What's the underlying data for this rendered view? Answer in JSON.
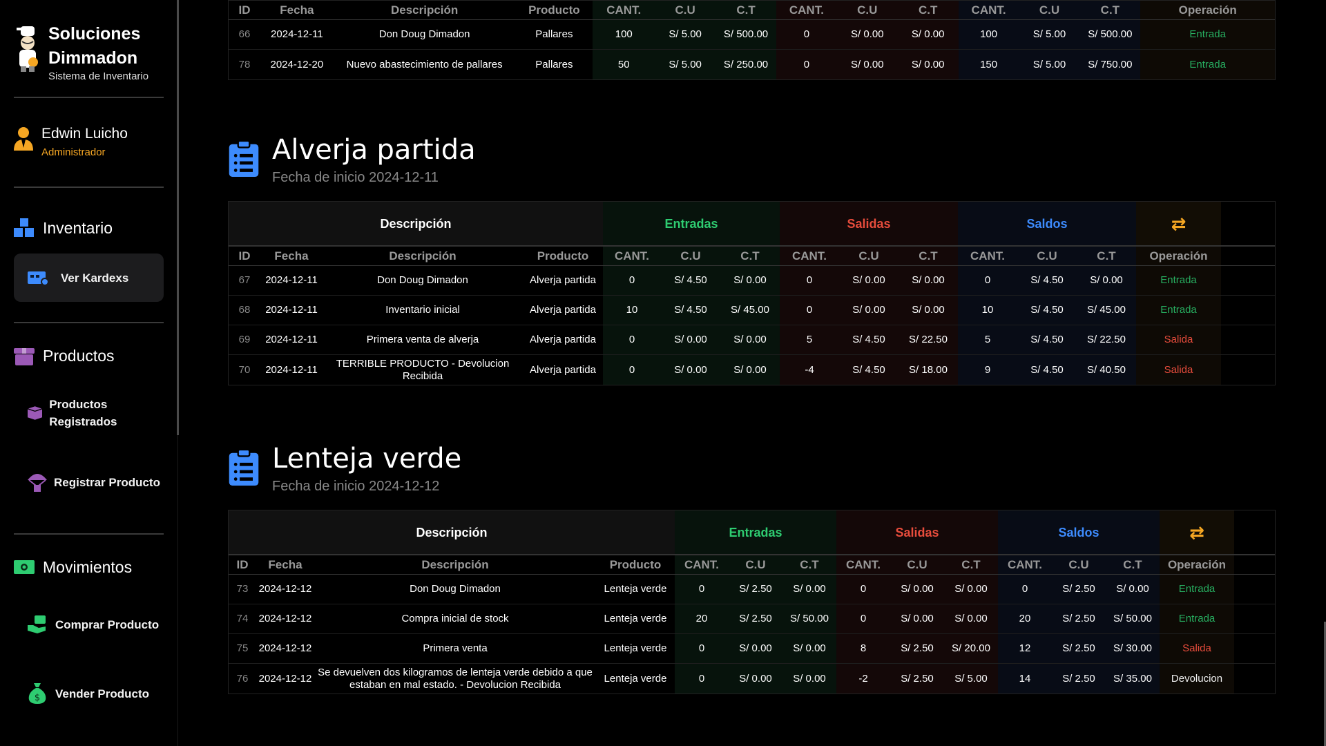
{
  "brand": {
    "title": "Soluciones Dimmadon",
    "subtitle": "Sistema de Inventario"
  },
  "user": {
    "name": "Edwin Luicho",
    "role": "Administrador"
  },
  "sidebar": {
    "inventario": {
      "label": "Inventario",
      "items": [
        {
          "label": "Ver Kardexs"
        }
      ]
    },
    "productos": {
      "label": "Productos",
      "items": [
        {
          "label": "Productos Registrados"
        },
        {
          "label": "Registrar Producto"
        }
      ]
    },
    "movimientos": {
      "label": "Movimientos",
      "items": [
        {
          "label": "Comprar Producto"
        },
        {
          "label": "Vender Producto"
        }
      ]
    }
  },
  "columns": [
    "ID",
    "Fecha",
    "Descripción",
    "Producto",
    "CANT.",
    "C.U",
    "C.T",
    "CANT.",
    "C.U",
    "C.T",
    "CANT.",
    "C.U",
    "C.T",
    "Operación"
  ],
  "groups": {
    "desc": "Descripción",
    "entradas": "Entradas",
    "salidas": "Salidas",
    "saldos": "Saldos",
    "op_icon": "⇄"
  },
  "colors": {
    "entrada": "#27ae60",
    "salida": "#e74c3c",
    "saldos": "#3d8bfd",
    "accent": "#f5a623"
  },
  "kardex": [
    {
      "rows": [
        [
          "66",
          "2024-12-11",
          "Don Doug Dimadon",
          "Pallares",
          "100",
          "S/ 5.00",
          "S/ 500.00",
          "0",
          "S/ 0.00",
          "S/ 0.00",
          "100",
          "S/ 5.00",
          "S/ 500.00",
          "Entrada"
        ],
        [
          "78",
          "2024-12-20",
          "Nuevo abastecimiento de pallares",
          "Pallares",
          "50",
          "S/ 5.00",
          "S/ 250.00",
          "0",
          "S/ 0.00",
          "S/ 0.00",
          "150",
          "S/ 5.00",
          "S/ 750.00",
          "Entrada"
        ]
      ]
    },
    {
      "name": "Alverja partida",
      "start": "Fecha de inicio 2024-12-11",
      "rows": [
        [
          "67",
          "2024-12-11",
          "Don Doug Dimadon",
          "Alverja partida",
          "0",
          "S/ 4.50",
          "S/ 0.00",
          "0",
          "S/ 0.00",
          "S/ 0.00",
          "0",
          "S/ 4.50",
          "S/ 0.00",
          "Entrada"
        ],
        [
          "68",
          "2024-12-11",
          "Inventario inicial",
          "Alverja partida",
          "10",
          "S/ 4.50",
          "S/ 45.00",
          "0",
          "S/ 0.00",
          "S/ 0.00",
          "10",
          "S/ 4.50",
          "S/ 45.00",
          "Entrada"
        ],
        [
          "69",
          "2024-12-11",
          "Primera venta de alverja",
          "Alverja partida",
          "0",
          "S/ 0.00",
          "S/ 0.00",
          "5",
          "S/ 4.50",
          "S/ 22.50",
          "5",
          "S/ 4.50",
          "S/ 22.50",
          "Salida"
        ],
        [
          "70",
          "2024-12-11",
          "TERRIBLE PRODUCTO - Devolucion Recibida",
          "Alverja partida",
          "0",
          "S/ 0.00",
          "S/ 0.00",
          "-4",
          "S/ 4.50",
          "S/ 18.00",
          "9",
          "S/ 4.50",
          "S/ 40.50",
          "Salida"
        ]
      ]
    },
    {
      "name": "Lenteja verde",
      "start": "Fecha de inicio 2024-12-12",
      "rows": [
        [
          "73",
          "2024-12-12",
          "Don Doug Dimadon",
          "Lenteja verde",
          "0",
          "S/ 2.50",
          "S/ 0.00",
          "0",
          "S/ 0.00",
          "S/ 0.00",
          "0",
          "S/ 2.50",
          "S/ 0.00",
          "Entrada"
        ],
        [
          "74",
          "2024-12-12",
          "Compra inicial de stock",
          "Lenteja verde",
          "20",
          "S/ 2.50",
          "S/ 50.00",
          "0",
          "S/ 0.00",
          "S/ 0.00",
          "20",
          "S/ 2.50",
          "S/ 50.00",
          "Entrada"
        ],
        [
          "75",
          "2024-12-12",
          "Primera venta",
          "Lenteja verde",
          "0",
          "S/ 0.00",
          "S/ 0.00",
          "8",
          "S/ 2.50",
          "S/ 20.00",
          "12",
          "S/ 2.50",
          "S/ 30.00",
          "Salida"
        ],
        [
          "76",
          "2024-12-12",
          "Se devuelven dos kilogramos de lenteja verde debido a que estaban en mal estado. - Devolucion Recibida",
          "Lenteja verde",
          "0",
          "S/ 0.00",
          "S/ 0.00",
          "-2",
          "S/ 2.50",
          "S/ 5.00",
          "14",
          "S/ 2.50",
          "S/ 35.00",
          "Devolucion"
        ]
      ]
    }
  ]
}
